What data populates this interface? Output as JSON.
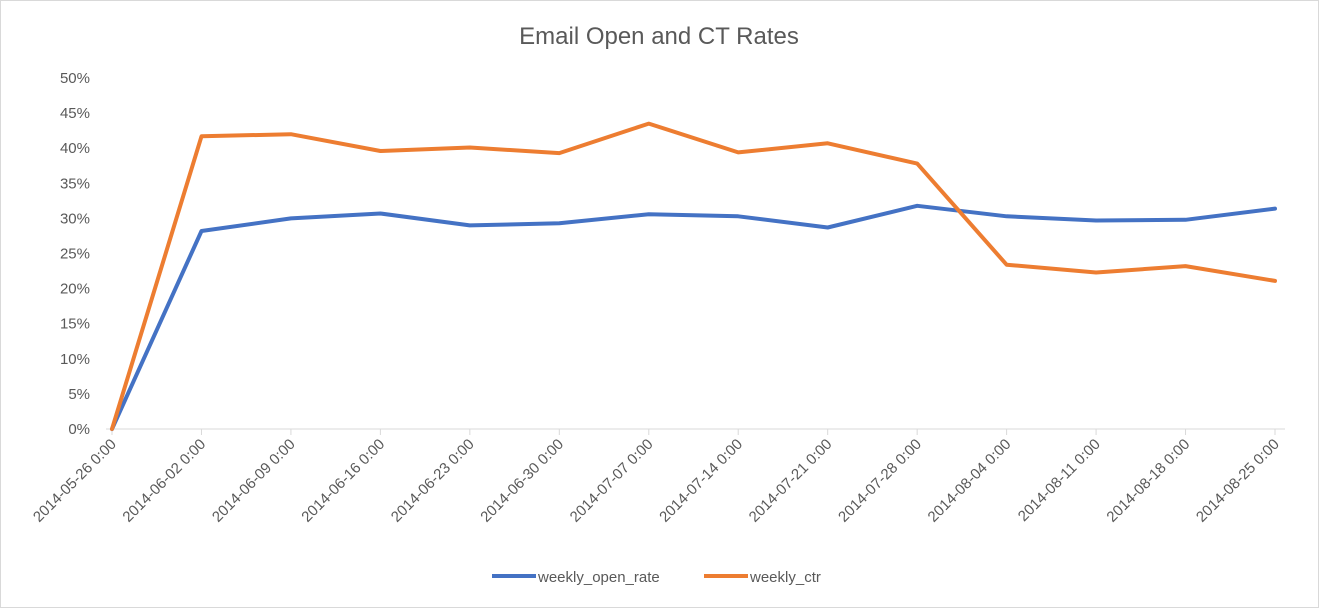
{
  "chart_data": {
    "type": "line",
    "title": "Email Open and CT Rates",
    "xlabel": "",
    "ylabel": "",
    "x": [
      "2014-05-26 0:00",
      "2014-06-02 0:00",
      "2014-06-09 0:00",
      "2014-06-16 0:00",
      "2014-06-23 0:00",
      "2014-06-30 0:00",
      "2014-07-07 0:00",
      "2014-07-14 0:00",
      "2014-07-21 0:00",
      "2014-07-28 0:00",
      "2014-08-04 0:00",
      "2014-08-11 0:00",
      "2014-08-18 0:00",
      "2014-08-25 0:00"
    ],
    "y_ticks": [
      "0%",
      "5%",
      "10%",
      "15%",
      "20%",
      "25%",
      "30%",
      "35%",
      "40%",
      "45%",
      "50%"
    ],
    "ylim": [
      0,
      0.5
    ],
    "grid": false,
    "legend_position": "bottom",
    "series": [
      {
        "name": "weekly_open_rate",
        "color": "#4472c4",
        "values": [
          0.0,
          0.282,
          0.3,
          0.307,
          0.29,
          0.293,
          0.306,
          0.303,
          0.287,
          0.318,
          0.303,
          0.297,
          0.298,
          0.314
        ]
      },
      {
        "name": "weekly_ctr",
        "color": "#ed7d31",
        "values": [
          0.0,
          0.417,
          0.42,
          0.396,
          0.401,
          0.393,
          0.435,
          0.394,
          0.407,
          0.378,
          0.234,
          0.223,
          0.232,
          0.211
        ]
      }
    ]
  }
}
